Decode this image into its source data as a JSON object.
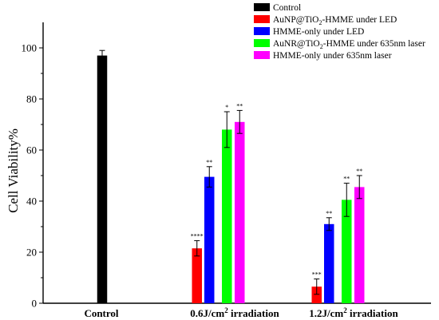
{
  "chart_data": {
    "type": "bar",
    "title": "",
    "ylabel": "Cell Viability%",
    "xlabel": "",
    "ylim": [
      0,
      110
    ],
    "yticks": [
      0,
      20,
      40,
      60,
      80,
      100
    ],
    "grid": false,
    "legend_position": "top-right",
    "categories": [
      {
        "label": "Control",
        "sup": "",
        "suffix": ""
      },
      {
        "label": "0.6J/cm",
        "sup": "2",
        "suffix": " irradiation"
      },
      {
        "label": "1.2J/cm",
        "sup": "2",
        "suffix": " irradiation"
      }
    ],
    "series": [
      {
        "name": "Control",
        "legend_parts": {
          "pre": "Control",
          "sub": "",
          "post": ""
        },
        "color": "#000000",
        "values": [
          97,
          null,
          null
        ],
        "errors": [
          2,
          null,
          null
        ],
        "sig": [
          "",
          "",
          ""
        ]
      },
      {
        "name": "AuNP@TiO2-HMME under LED",
        "legend_parts": {
          "pre": "AuNP@TiO",
          "sub": "2",
          "post": "-HMME under LED"
        },
        "color": "#ff0000",
        "values": [
          null,
          21.5,
          6.5
        ],
        "errors": [
          null,
          3,
          3
        ],
        "sig": [
          "",
          "****",
          "***"
        ]
      },
      {
        "name": "HMME-only under LED",
        "legend_parts": {
          "pre": "HMME-only under LED",
          "sub": "",
          "post": ""
        },
        "color": "#0000ff",
        "values": [
          null,
          49.5,
          31
        ],
        "errors": [
          null,
          4,
          2.5
        ],
        "sig": [
          "",
          "**",
          "**"
        ]
      },
      {
        "name": "AuNR@TiO2-HMME under 635nm laser",
        "legend_parts": {
          "pre": "AuNR@TiO",
          "sub": "2",
          "post": "-HMME under 635nm laser"
        },
        "color": "#00ff00",
        "values": [
          null,
          68,
          40.5
        ],
        "errors": [
          null,
          7,
          6.5
        ],
        "sig": [
          "",
          "*",
          "**"
        ]
      },
      {
        "name": "HMME-only under 635nm laser",
        "legend_parts": {
          "pre": "HMME-only under 635nm laser",
          "sub": "",
          "post": ""
        },
        "color": "#ff00ff",
        "values": [
          null,
          71,
          45.5
        ],
        "errors": [
          null,
          4.5,
          4.5
        ],
        "sig": [
          "",
          "**",
          "**"
        ]
      }
    ]
  }
}
